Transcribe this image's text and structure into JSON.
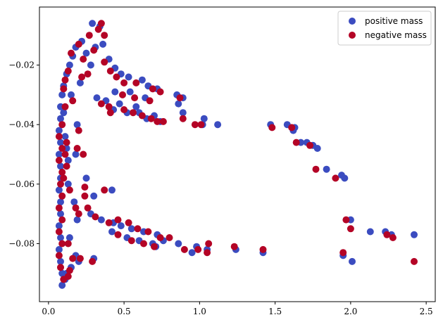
{
  "chart_data": {
    "type": "scatter",
    "title": "",
    "xlabel": "",
    "ylabel": "",
    "xlim": [
      -0.06,
      2.56
    ],
    "ylim": [
      -0.0995,
      -0.0005
    ],
    "xticks": [
      0.0,
      0.5,
      1.0,
      1.5,
      2.0,
      2.5
    ],
    "xtick_labels": [
      "0.0",
      "0.5",
      "1.0",
      "1.5",
      "2.0",
      "2.5"
    ],
    "yticks": [
      -0.08,
      -0.06,
      -0.04,
      -0.02
    ],
    "ytick_labels": [
      "−0.08",
      "−0.06",
      "−0.04",
      "−0.02"
    ],
    "grid": false,
    "legend_position": "top-right",
    "series": [
      {
        "name": "positive mass",
        "color": "#3b4cc0",
        "points": [
          [
            0.29,
            -0.006
          ],
          [
            0.34,
            -0.007
          ],
          [
            0.22,
            -0.012
          ],
          [
            0.18,
            -0.014
          ],
          [
            0.31,
            -0.014
          ],
          [
            0.36,
            -0.013
          ],
          [
            0.16,
            -0.017
          ],
          [
            0.25,
            -0.016
          ],
          [
            0.4,
            -0.018
          ],
          [
            0.14,
            -0.02
          ],
          [
            0.28,
            -0.02
          ],
          [
            0.44,
            -0.021
          ],
          [
            0.12,
            -0.023
          ],
          [
            0.48,
            -0.023
          ],
          [
            0.53,
            -0.024
          ],
          [
            0.62,
            -0.025
          ],
          [
            0.66,
            -0.027
          ],
          [
            0.72,
            -0.028
          ],
          [
            0.1,
            -0.027
          ],
          [
            0.09,
            -0.03
          ],
          [
            0.44,
            -0.029
          ],
          [
            0.54,
            -0.029
          ],
          [
            0.64,
            -0.031
          ],
          [
            0.85,
            -0.03
          ],
          [
            0.89,
            -0.031
          ],
          [
            0.86,
            -0.033
          ],
          [
            0.32,
            -0.031
          ],
          [
            0.38,
            -0.032
          ],
          [
            0.47,
            -0.033
          ],
          [
            0.58,
            -0.034
          ],
          [
            0.08,
            -0.034
          ],
          [
            0.08,
            -0.038
          ],
          [
            0.43,
            -0.035
          ],
          [
            0.52,
            -0.036
          ],
          [
            0.6,
            -0.036
          ],
          [
            0.7,
            -0.037
          ],
          [
            0.89,
            -0.036
          ],
          [
            1.03,
            -0.038
          ],
          [
            1.12,
            -0.04
          ],
          [
            1.02,
            -0.04
          ],
          [
            0.65,
            -0.038
          ],
          [
            0.74,
            -0.039
          ],
          [
            1.47,
            -0.04
          ],
          [
            1.58,
            -0.04
          ],
          [
            1.63,
            -0.041
          ],
          [
            1.62,
            -0.042
          ],
          [
            1.67,
            -0.046
          ],
          [
            1.71,
            -0.046
          ],
          [
            1.75,
            -0.047
          ],
          [
            1.78,
            -0.048
          ],
          [
            1.84,
            -0.055
          ],
          [
            1.94,
            -0.057
          ],
          [
            1.96,
            -0.058
          ],
          [
            0.07,
            -0.042
          ],
          [
            0.08,
            -0.046
          ],
          [
            0.07,
            -0.05
          ],
          [
            0.08,
            -0.054
          ],
          [
            0.08,
            -0.058
          ],
          [
            0.07,
            -0.062
          ],
          [
            0.08,
            -0.066
          ],
          [
            0.08,
            -0.07
          ],
          [
            0.07,
            -0.074
          ],
          [
            0.08,
            -0.078
          ],
          [
            0.07,
            -0.082
          ],
          [
            0.08,
            -0.086
          ],
          [
            0.09,
            -0.09
          ],
          [
            0.09,
            -0.094
          ],
          [
            0.42,
            -0.062
          ],
          [
            0.3,
            -0.064
          ],
          [
            0.25,
            -0.058
          ],
          [
            0.28,
            -0.07
          ],
          [
            0.35,
            -0.072
          ],
          [
            0.43,
            -0.073
          ],
          [
            0.48,
            -0.074
          ],
          [
            0.55,
            -0.075
          ],
          [
            0.63,
            -0.076
          ],
          [
            0.72,
            -0.077
          ],
          [
            0.42,
            -0.076
          ],
          [
            0.52,
            -0.078
          ],
          [
            0.6,
            -0.079
          ],
          [
            0.69,
            -0.08
          ],
          [
            0.76,
            -0.079
          ],
          [
            0.86,
            -0.08
          ],
          [
            0.98,
            -0.081
          ],
          [
            0.95,
            -0.083
          ],
          [
            1.05,
            -0.082
          ],
          [
            1.24,
            -0.082
          ],
          [
            1.42,
            -0.083
          ],
          [
            2.0,
            -0.072
          ],
          [
            2.13,
            -0.076
          ],
          [
            2.23,
            -0.076
          ],
          [
            2.27,
            -0.077
          ],
          [
            2.42,
            -0.077
          ],
          [
            1.95,
            -0.084
          ],
          [
            2.01,
            -0.086
          ],
          [
            0.3,
            -0.085
          ],
          [
            0.71,
            -0.081
          ],
          [
            0.18,
            -0.084
          ],
          [
            0.15,
            -0.088
          ],
          [
            0.12,
            -0.09
          ],
          [
            0.11,
            -0.092
          ],
          [
            0.2,
            -0.086
          ],
          [
            0.13,
            -0.06
          ],
          [
            0.18,
            -0.05
          ],
          [
            0.11,
            -0.044
          ],
          [
            0.19,
            -0.04
          ],
          [
            0.12,
            -0.048
          ],
          [
            0.17,
            -0.066
          ],
          [
            0.1,
            -0.036
          ],
          [
            0.15,
            -0.03
          ],
          [
            0.21,
            -0.026
          ],
          [
            0.13,
            -0.052
          ],
          [
            0.19,
            -0.072
          ],
          [
            0.14,
            -0.078
          ]
        ]
      },
      {
        "name": "negative mass",
        "color": "#b40426",
        "points": [
          [
            0.35,
            -0.006
          ],
          [
            0.33,
            -0.008
          ],
          [
            0.27,
            -0.01
          ],
          [
            0.37,
            -0.01
          ],
          [
            0.2,
            -0.013
          ],
          [
            0.3,
            -0.015
          ],
          [
            0.15,
            -0.016
          ],
          [
            0.23,
            -0.018
          ],
          [
            0.37,
            -0.019
          ],
          [
            0.13,
            -0.022
          ],
          [
            0.41,
            -0.022
          ],
          [
            0.26,
            -0.023
          ],
          [
            0.45,
            -0.024
          ],
          [
            0.5,
            -0.026
          ],
          [
            0.58,
            -0.026
          ],
          [
            0.69,
            -0.028
          ],
          [
            0.74,
            -0.029
          ],
          [
            0.11,
            -0.025
          ],
          [
            0.1,
            -0.028
          ],
          [
            0.49,
            -0.03
          ],
          [
            0.57,
            -0.031
          ],
          [
            0.67,
            -0.032
          ],
          [
            0.87,
            -0.031
          ],
          [
            0.35,
            -0.033
          ],
          [
            0.4,
            -0.034
          ],
          [
            0.5,
            -0.035
          ],
          [
            0.56,
            -0.036
          ],
          [
            0.41,
            -0.036
          ],
          [
            0.62,
            -0.037
          ],
          [
            0.72,
            -0.039
          ],
          [
            0.76,
            -0.039
          ],
          [
            0.89,
            -0.038
          ],
          [
            0.97,
            -0.04
          ],
          [
            1.01,
            -0.04
          ],
          [
            0.68,
            -0.038
          ],
          [
            1.48,
            -0.041
          ],
          [
            1.61,
            -0.041
          ],
          [
            1.64,
            -0.046
          ],
          [
            1.73,
            -0.047
          ],
          [
            1.77,
            -0.055
          ],
          [
            1.9,
            -0.058
          ],
          [
            0.09,
            -0.04
          ],
          [
            0.07,
            -0.044
          ],
          [
            0.09,
            -0.048
          ],
          [
            0.07,
            -0.052
          ],
          [
            0.09,
            -0.056
          ],
          [
            0.08,
            -0.06
          ],
          [
            0.09,
            -0.064
          ],
          [
            0.07,
            -0.068
          ],
          [
            0.09,
            -0.072
          ],
          [
            0.07,
            -0.076
          ],
          [
            0.09,
            -0.08
          ],
          [
            0.07,
            -0.084
          ],
          [
            0.08,
            -0.088
          ],
          [
            0.1,
            -0.092
          ],
          [
            0.37,
            -0.062
          ],
          [
            0.24,
            -0.061
          ],
          [
            0.26,
            -0.068
          ],
          [
            0.31,
            -0.071
          ],
          [
            0.4,
            -0.073
          ],
          [
            0.46,
            -0.072
          ],
          [
            0.53,
            -0.073
          ],
          [
            0.59,
            -0.075
          ],
          [
            0.66,
            -0.076
          ],
          [
            0.74,
            -0.078
          ],
          [
            0.46,
            -0.077
          ],
          [
            0.55,
            -0.079
          ],
          [
            0.63,
            -0.08
          ],
          [
            0.7,
            -0.081
          ],
          [
            0.8,
            -0.078
          ],
          [
            0.9,
            -0.082
          ],
          [
            0.99,
            -0.082
          ],
          [
            1.05,
            -0.083
          ],
          [
            1.06,
            -0.08
          ],
          [
            1.23,
            -0.081
          ],
          [
            1.42,
            -0.082
          ],
          [
            1.97,
            -0.072
          ],
          [
            2.0,
            -0.075
          ],
          [
            2.24,
            -0.077
          ],
          [
            2.28,
            -0.078
          ],
          [
            2.42,
            -0.086
          ],
          [
            1.95,
            -0.083
          ],
          [
            0.29,
            -0.086
          ],
          [
            0.16,
            -0.085
          ],
          [
            0.14,
            -0.089
          ],
          [
            0.13,
            -0.091
          ],
          [
            0.21,
            -0.085
          ],
          [
            0.14,
            -0.062
          ],
          [
            0.19,
            -0.048
          ],
          [
            0.12,
            -0.046
          ],
          [
            0.2,
            -0.042
          ],
          [
            0.11,
            -0.05
          ],
          [
            0.18,
            -0.068
          ],
          [
            0.11,
            -0.034
          ],
          [
            0.16,
            -0.032
          ],
          [
            0.22,
            -0.024
          ],
          [
            0.12,
            -0.054
          ],
          [
            0.2,
            -0.07
          ],
          [
            0.13,
            -0.08
          ],
          [
            0.24,
            -0.064
          ],
          [
            0.23,
            -0.05
          ],
          [
            0.1,
            -0.058
          ]
        ]
      }
    ]
  }
}
